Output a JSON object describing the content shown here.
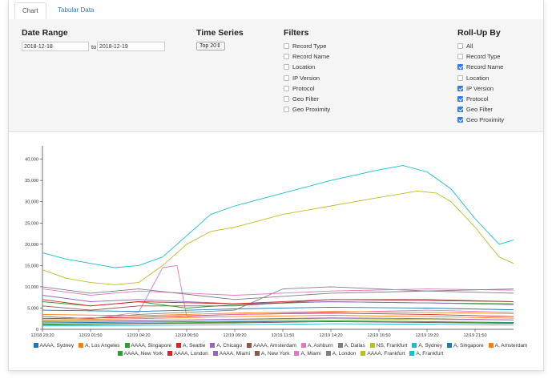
{
  "tabs": [
    {
      "label": "Chart",
      "active": true
    },
    {
      "label": "Tabular Data",
      "active": false
    }
  ],
  "filters_panel": {
    "date_range": {
      "title": "Date Range",
      "from_value": "2018-12-18",
      "to_label": "to",
      "to_value": "2018-12-19"
    },
    "time_series": {
      "title": "Time Series",
      "selected": "Top 20"
    },
    "filters": {
      "title": "Filters",
      "options": [
        {
          "label": "Record Type",
          "checked": false
        },
        {
          "label": "Record Name",
          "checked": false
        },
        {
          "label": "Location",
          "checked": false
        },
        {
          "label": "IP Version",
          "checked": false
        },
        {
          "label": "Protocol",
          "checked": false
        },
        {
          "label": "Geo Filter",
          "checked": false
        },
        {
          "label": "Geo Proximity",
          "checked": false
        }
      ]
    },
    "rollup": {
      "title": "Roll-Up By",
      "options": [
        {
          "label": "All",
          "checked": false
        },
        {
          "label": "Record Type",
          "checked": false
        },
        {
          "label": "Record Name",
          "checked": true
        },
        {
          "label": "Location",
          "checked": false
        },
        {
          "label": "IP Version",
          "checked": true
        },
        {
          "label": "Protocol",
          "checked": true
        },
        {
          "label": "Geo Filter",
          "checked": true
        },
        {
          "label": "Geo Proximity",
          "checked": true
        }
      ]
    }
  },
  "chart_data": {
    "type": "line",
    "title": "",
    "xlabel": "",
    "ylabel": "",
    "ylim": [
      0,
      42000
    ],
    "y_ticks": [
      0,
      5000,
      10000,
      15000,
      20000,
      25000,
      30000,
      35000,
      40000
    ],
    "y_tick_labels": [
      "0",
      "5,000",
      "10,000",
      "15,000",
      "20,000",
      "25,000",
      "30,000",
      "35,000",
      "40,000"
    ],
    "x_tick_labels": [
      "12/18 23:20",
      "12/19 01:50",
      "12/19 04:20",
      "12/19 06:50",
      "12/19 09:20",
      "12/19 11:50",
      "12/19 14:20",
      "12/19 16:50",
      "12/19 19:20",
      "12/19 21:50"
    ],
    "x_tick_positions": [
      0,
      1,
      2,
      3,
      4,
      5,
      6,
      7,
      8,
      9
    ],
    "x_max": 9.8,
    "grid": false,
    "legend": "bottom",
    "series": [
      {
        "name": "AAAA, Sydney",
        "color": "#1f77b4",
        "x": [
          0,
          2,
          4,
          6,
          8,
          9.8
        ],
        "values": [
          1500,
          1700,
          1900,
          2000,
          1800,
          1600
        ]
      },
      {
        "name": "A, Los Angeles",
        "color": "#ff7f0e",
        "x": [
          0,
          2,
          4,
          6,
          8,
          9.8
        ],
        "values": [
          2200,
          2500,
          3000,
          3300,
          3000,
          2600
        ]
      },
      {
        "name": "AAAA, Singapore",
        "color": "#2ca02c",
        "x": [
          0,
          1,
          2,
          3,
          4,
          6,
          8,
          9.8
        ],
        "values": [
          6500,
          5500,
          6500,
          5000,
          5800,
          6500,
          6200,
          6000
        ]
      },
      {
        "name": "A, Seattle",
        "color": "#d62728",
        "x": [
          0,
          2,
          4,
          6,
          8,
          9.8
        ],
        "values": [
          2500,
          2800,
          3500,
          3800,
          3500,
          3000
        ]
      },
      {
        "name": "A, Chicago",
        "color": "#9467bd",
        "x": [
          0,
          1,
          2,
          4,
          6,
          8,
          9.8
        ],
        "values": [
          8000,
          6500,
          7000,
          6000,
          6500,
          6200,
          5800
        ]
      },
      {
        "name": "AAAA, Amsterdam",
        "color": "#8c564b",
        "x": [
          0,
          2,
          4,
          6,
          8,
          9.8
        ],
        "values": [
          1000,
          1300,
          1500,
          1800,
          1600,
          1400
        ]
      },
      {
        "name": "A, Ashburn",
        "color": "#e377c2",
        "x": [
          0,
          1,
          2,
          2.5,
          2.8,
          3,
          4,
          6,
          8,
          9.8
        ],
        "values": [
          3000,
          2500,
          4000,
          14500,
          15000,
          3000,
          3500,
          4000,
          4500,
          4000
        ]
      },
      {
        "name": "A, Dallas",
        "color": "#7f7f7f",
        "x": [
          0,
          1,
          2,
          4,
          5,
          6,
          8,
          9.8
        ],
        "values": [
          3000,
          2500,
          3500,
          4500,
          9500,
          10000,
          9000,
          8500
        ]
      },
      {
        "name": "NS, Frankfurt",
        "color": "#bcbd22",
        "x": [
          0,
          2,
          4,
          6,
          8,
          9.8
        ],
        "values": [
          2000,
          2100,
          2300,
          2500,
          2300,
          2200
        ]
      },
      {
        "name": "A, Sydney",
        "color": "#17becf",
        "x": [
          0,
          2,
          4,
          6,
          8,
          9.8
        ],
        "values": [
          800,
          900,
          1100,
          1300,
          1200,
          1000
        ]
      },
      {
        "name": "A, Singapore",
        "color": "#1f77b4",
        "x": [
          0,
          2,
          4,
          6,
          8,
          9.8
        ],
        "values": [
          4500,
          4200,
          4800,
          5200,
          5000,
          4600
        ]
      },
      {
        "name": "A, Amsterdam",
        "color": "#ff7f0e",
        "x": [
          0,
          2,
          4,
          6,
          8,
          9.8
        ],
        "values": [
          3500,
          3200,
          3800,
          4200,
          4000,
          3700
        ]
      },
      {
        "name": "AAAA, New York",
        "color": "#2ca02c",
        "x": [
          0,
          2,
          4,
          6,
          8,
          9.8
        ],
        "values": [
          1200,
          1400,
          1700,
          2000,
          1800,
          1500
        ]
      },
      {
        "name": "AAAA, London",
        "color": "#d62728",
        "x": [
          0,
          1,
          2,
          4,
          6,
          8,
          9.8
        ],
        "values": [
          7000,
          5500,
          6500,
          6000,
          7000,
          6800,
          6500
        ]
      },
      {
        "name": "AAAA, Miami",
        "color": "#9467bd",
        "x": [
          0,
          2,
          4,
          6,
          8,
          9.8
        ],
        "values": [
          1800,
          2000,
          2400,
          2700,
          2500,
          2200
        ]
      },
      {
        "name": "A, New York",
        "color": "#8c564b",
        "x": [
          0,
          1,
          2,
          4,
          6,
          8,
          9.8
        ],
        "values": [
          5500,
          4500,
          5500,
          5500,
          7000,
          7000,
          6500
        ]
      },
      {
        "name": "A, Miami",
        "color": "#e377c2",
        "x": [
          0,
          1,
          2,
          4,
          6,
          8,
          9.8
        ],
        "values": [
          9500,
          8000,
          9000,
          8000,
          9000,
          9500,
          9200
        ]
      },
      {
        "name": "A, London",
        "color": "#7f7f7f",
        "x": [
          0,
          1,
          2,
          4,
          6,
          8,
          9.8
        ],
        "values": [
          10000,
          8500,
          9500,
          7000,
          8500,
          9000,
          9500
        ]
      },
      {
        "name": "AAAA, Frankfurt",
        "color": "#bcbd22",
        "x": [
          0,
          0.5,
          1,
          1.5,
          2,
          2.5,
          3,
          3.5,
          4,
          5,
          6,
          7,
          7.8,
          8.2,
          8.5,
          9,
          9.5,
          9.8
        ],
        "values": [
          14000,
          12000,
          11000,
          10500,
          11000,
          15000,
          20000,
          23000,
          24000,
          27000,
          29000,
          31000,
          32500,
          32000,
          30000,
          24000,
          17000,
          15500
        ]
      },
      {
        "name": "A, Frankfurt",
        "color": "#17becf",
        "x": [
          0,
          0.5,
          1,
          1.5,
          2,
          2.5,
          3,
          3.5,
          4,
          5,
          6,
          7,
          7.5,
          8,
          8.5,
          9,
          9.5,
          9.8
        ],
        "values": [
          18000,
          16500,
          15500,
          14500,
          15000,
          17000,
          22000,
          27000,
          29000,
          32000,
          35000,
          37500,
          38500,
          37000,
          33000,
          26000,
          20000,
          21000
        ]
      }
    ]
  }
}
